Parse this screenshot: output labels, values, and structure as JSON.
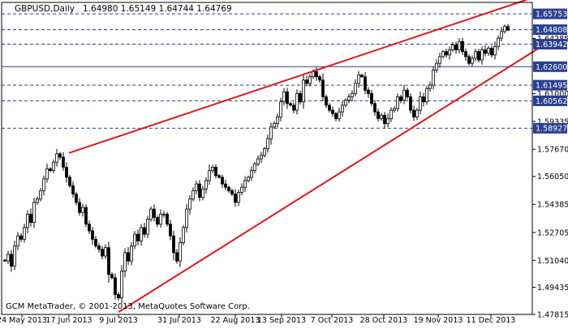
{
  "header": {
    "symbol": "GBPUSD,Daily",
    "ohlc": "1.64980 1.65149 1.64744 1.64769"
  },
  "watermark": "GCM MetaTrader, © 2001-2013, MetaQuotes Software Corp.",
  "chart_data": {
    "type": "candlestick",
    "title": "GBPUSD,Daily",
    "timeframe": "Daily",
    "last_bar": {
      "open": 1.6498,
      "high": 1.65149,
      "low": 1.64744,
      "close": 1.64769
    },
    "x_tick_labels": [
      "24 May 2013",
      "17 Jun 2013",
      "9 Jul 2013",
      "31 Jul 2013",
      "22 Aug 2013",
      "13 Sep 2013",
      "7 Oct 2013",
      "28 Oct 2013",
      "19 Nov 2013",
      "11 Dec 2013"
    ],
    "y_tick_labels": [
      1.64285,
      1.61,
      1.59335,
      1.5767,
      1.5605,
      1.54385,
      1.52705,
      1.5104,
      1.49435,
      1.47815
    ],
    "ylim": [
      1.47815,
      1.66435
    ],
    "horizontal_levels": [
      {
        "value": 1.65753,
        "label": "1.65753",
        "style": "dashed"
      },
      {
        "value": 1.64808,
        "label": "1.64808",
        "style": "dashed"
      },
      {
        "value": 1.63942,
        "label": "1.63942",
        "style": "dashed"
      },
      {
        "value": 1.626,
        "label": "1.62600",
        "style": "solid"
      },
      {
        "value": 1.61495,
        "label": "1.61495",
        "style": "dashed"
      },
      {
        "value": 1.60562,
        "label": "1.60562",
        "style": "dashed"
      },
      {
        "value": 1.58927,
        "label": "1.58927",
        "style": "dashed"
      }
    ],
    "trendlines": [
      {
        "name": "upper channel",
        "from": {
          "date": "2013-06-17",
          "value": 1.5745
        },
        "to": {
          "date": "2013-12-26",
          "value": 1.666
        }
      },
      {
        "name": "lower channel",
        "from": {
          "date": "2013-07-09",
          "value": 1.4795
        },
        "to": {
          "date": "2014-01-01",
          "value": 1.638
        }
      }
    ],
    "closes": [
      1.51,
      1.514,
      1.507,
      1.519,
      1.525,
      1.523,
      1.53,
      1.538,
      1.533,
      1.545,
      1.547,
      1.552,
      1.559,
      1.565,
      1.564,
      1.569,
      1.574,
      1.572,
      1.566,
      1.56,
      1.555,
      1.55,
      1.545,
      1.539,
      1.542,
      1.532,
      1.528,
      1.523,
      1.519,
      1.517,
      1.513,
      1.518,
      1.502,
      1.5,
      1.49,
      1.488,
      1.504,
      1.515,
      1.51,
      1.519,
      1.526,
      1.522,
      1.53,
      1.526,
      1.535,
      1.541,
      1.536,
      1.532,
      1.538,
      1.538,
      1.532,
      1.525,
      1.515,
      1.51,
      1.521,
      1.53,
      1.541,
      1.547,
      1.552,
      1.556,
      1.548,
      1.553,
      1.558,
      1.564,
      1.566,
      1.561,
      1.56,
      1.556,
      1.554,
      1.552,
      1.55,
      1.545,
      1.551,
      1.554,
      1.558,
      1.56,
      1.564,
      1.568,
      1.571,
      1.573,
      1.577,
      1.583,
      1.59,
      1.592,
      1.596,
      1.605,
      1.611,
      1.604,
      1.603,
      1.6,
      1.61,
      1.605,
      1.618,
      1.616,
      1.62,
      1.623,
      1.62,
      1.618,
      1.608,
      1.603,
      1.6,
      1.598,
      1.595,
      1.599,
      1.603,
      1.606,
      1.608,
      1.61,
      1.616,
      1.621,
      1.62,
      1.612,
      1.61,
      1.604,
      1.599,
      1.595,
      1.597,
      1.592,
      1.595,
      1.6,
      1.601,
      1.608,
      1.606,
      1.612,
      1.608,
      1.6,
      1.596,
      1.6,
      1.608,
      1.605,
      1.613,
      1.615,
      1.624,
      1.628,
      1.632,
      1.635,
      1.633,
      1.636,
      1.639,
      1.636,
      1.641,
      1.635,
      1.632,
      1.628,
      1.631,
      1.635,
      1.63,
      1.636,
      1.634,
      1.637,
      1.633,
      1.638,
      1.643,
      1.647,
      1.65,
      1.6477
    ],
    "grid": false,
    "xlabel": "",
    "ylabel": ""
  }
}
